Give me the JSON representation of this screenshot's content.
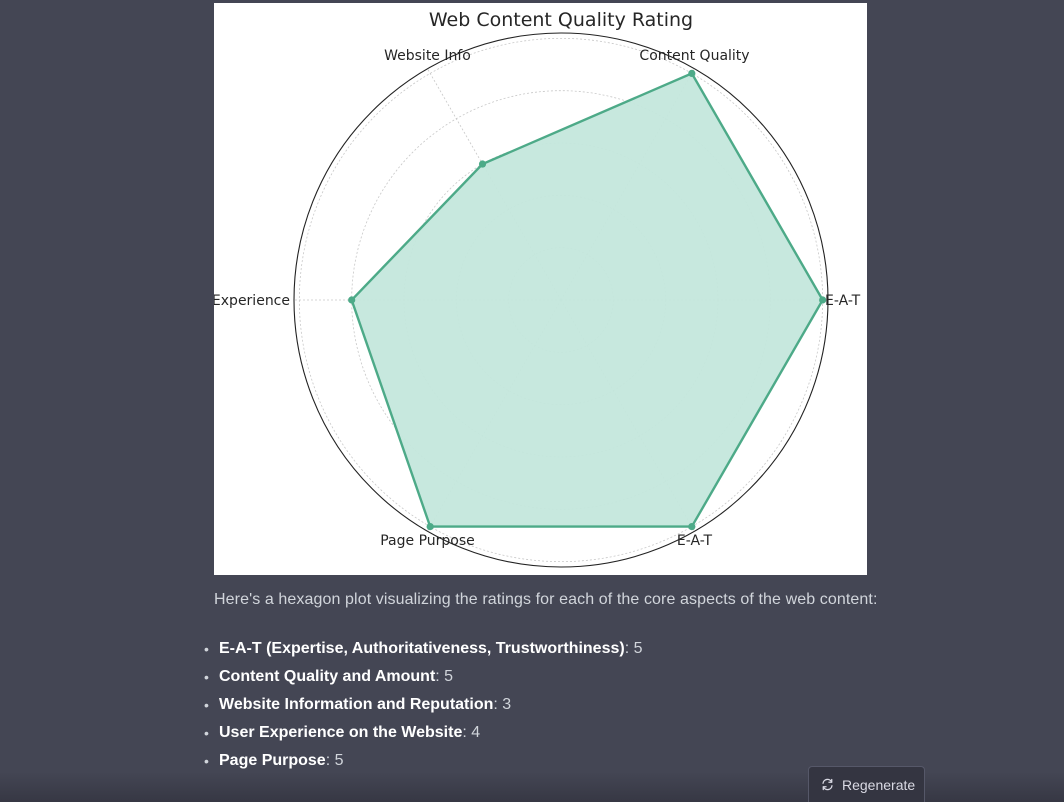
{
  "chart_data": {
    "type": "radar",
    "title": "Web Content Quality Rating",
    "categories": [
      "E-A-T",
      "Content Quality",
      "Website Info",
      "User Experience",
      "Page Purpose",
      "E-A-T"
    ],
    "values": [
      5,
      5,
      3,
      4,
      5,
      5
    ],
    "rmax": 5,
    "rticks": [
      1,
      2,
      3,
      4,
      5
    ],
    "grid": true,
    "colors": {
      "line": "#4daa88",
      "fill": "#c4e7dc",
      "frame": "#222222",
      "grid": "#c8c8c8"
    }
  },
  "message": {
    "intro": "Here's a hexagon plot visualizing the ratings for each of the core aspects of the web content:",
    "ratings": [
      {
        "label": "E-A-T (Expertise, Authoritativeness, Trustworthiness)",
        "value": ": 5"
      },
      {
        "label": "Content Quality and Amount",
        "value": ": 5"
      },
      {
        "label": "Website Information and Reputation",
        "value": ": 3"
      },
      {
        "label": "User Experience on the Website",
        "value": ": 4"
      },
      {
        "label": "Page Purpose",
        "value": ": 5"
      }
    ]
  },
  "controls": {
    "regenerate_label": "Regenerate",
    "regenerate_icon": "refresh-icon"
  }
}
